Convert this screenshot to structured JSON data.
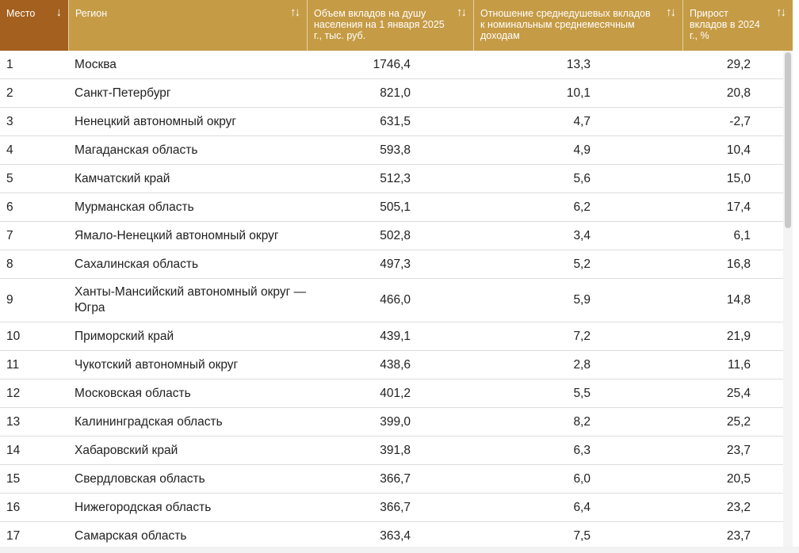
{
  "columns": [
    {
      "label": "Место",
      "sort_icon": "↓",
      "icon": "arrow-down-icon"
    },
    {
      "label": "Регион",
      "sort_icon": "↑↓",
      "icon": "sort-icon"
    },
    {
      "label": "Объем вкладов на душу населения на 1 января 2025 г., тыс. руб.",
      "sort_icon": "↑↓",
      "icon": "sort-icon"
    },
    {
      "label": "Отношение среднедушевых вкладов к номинальным среднемесячным доходам",
      "sort_icon": "↑↓",
      "icon": "sort-icon"
    },
    {
      "label": "Прирост вкладов в 2024 г., %",
      "sort_icon": "↑↓",
      "icon": "sort-icon"
    }
  ],
  "rows": [
    {
      "rank": "1",
      "region": "Москва",
      "volume": "1746,4",
      "ratio": "13,3",
      "growth": "29,2"
    },
    {
      "rank": "2",
      "region": "Санкт-Петербург",
      "volume": "821,0",
      "ratio": "10,1",
      "growth": "20,8"
    },
    {
      "rank": "3",
      "region": "Ненецкий автономный округ",
      "volume": "631,5",
      "ratio": "4,7",
      "growth": "-2,7"
    },
    {
      "rank": "4",
      "region": "Магаданская область",
      "volume": "593,8",
      "ratio": "4,9",
      "growth": "10,4"
    },
    {
      "rank": "5",
      "region": "Камчатский край",
      "volume": "512,3",
      "ratio": "5,6",
      "growth": "15,0"
    },
    {
      "rank": "6",
      "region": "Мурманская область",
      "volume": "505,1",
      "ratio": "6,2",
      "growth": "17,4"
    },
    {
      "rank": "7",
      "region": "Ямало-Ненецкий автономный округ",
      "volume": "502,8",
      "ratio": "3,4",
      "growth": "6,1"
    },
    {
      "rank": "8",
      "region": "Сахалинская область",
      "volume": "497,3",
      "ratio": "5,2",
      "growth": "16,8"
    },
    {
      "rank": "9",
      "region": "Ханты-Мансийский автономный округ — Югра",
      "volume": "466,0",
      "ratio": "5,9",
      "growth": "14,8"
    },
    {
      "rank": "10",
      "region": "Приморский край",
      "volume": "439,1",
      "ratio": "7,2",
      "growth": "21,9"
    },
    {
      "rank": "11",
      "region": "Чукотский автономный округ",
      "volume": "438,6",
      "ratio": "2,8",
      "growth": "11,6"
    },
    {
      "rank": "12",
      "region": "Московская область",
      "volume": "401,2",
      "ratio": "5,5",
      "growth": "25,4"
    },
    {
      "rank": "13",
      "region": "Калининградская область",
      "volume": "399,0",
      "ratio": "8,2",
      "growth": "25,2"
    },
    {
      "rank": "14",
      "region": "Хабаровский край",
      "volume": "391,8",
      "ratio": "6,3",
      "growth": "23,7"
    },
    {
      "rank": "15",
      "region": "Свердловская область",
      "volume": "366,7",
      "ratio": "6,0",
      "growth": "20,5"
    },
    {
      "rank": "16",
      "region": "Нижегородская область",
      "volume": "366,7",
      "ratio": "6,4",
      "growth": "23,2"
    },
    {
      "rank": "17",
      "region": "Самарская область",
      "volume": "363,4",
      "ratio": "7,5",
      "growth": "23,7"
    }
  ],
  "colors": {
    "header_bg": "#c59b45",
    "header_active_bg": "#a3601e",
    "header_text": "#ffffff",
    "row_border": "#dcdcdc"
  }
}
